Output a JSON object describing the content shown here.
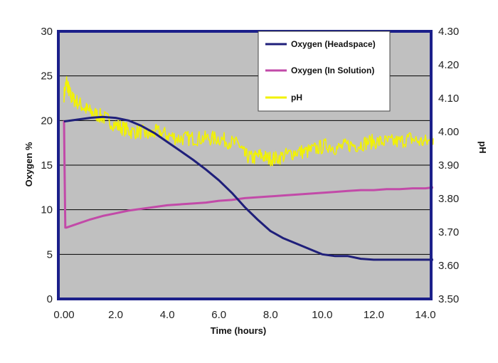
{
  "chart_data": {
    "type": "line",
    "xlabel": "Time (hours)",
    "ylabel": "Oxygen %",
    "y2label": "pH",
    "xlim": [
      0,
      14
    ],
    "ylim": [
      0,
      30
    ],
    "y2lim": [
      3.5,
      4.3
    ],
    "x_ticks": [
      "0.00",
      "2.0",
      "4.0",
      "6.0",
      "8.0",
      "10.0",
      "12.0",
      "14.0"
    ],
    "x_tick_values": [
      0,
      2,
      4,
      6,
      8,
      10,
      12,
      14
    ],
    "y_ticks": [
      "0",
      "5",
      "10",
      "15",
      "20",
      "25",
      "30"
    ],
    "y_tick_values": [
      0,
      5,
      10,
      15,
      20,
      25,
      30
    ],
    "y2_ticks": [
      "3.50",
      "3.60",
      "3.70",
      "3.80",
      "3.90",
      "4.00",
      "4.10",
      "4.20",
      "4.30"
    ],
    "y2_tick_values": [
      3.5,
      3.6,
      3.7,
      3.8,
      3.9,
      4.0,
      4.1,
      4.2,
      4.3
    ],
    "grid": "horizontal",
    "plot_background": "#c0c0c0",
    "frame_color": "#1b1f8a",
    "legend_position": "top-right",
    "series": [
      {
        "name": "Oxygen (Headspace)",
        "axis": "left",
        "color": "#1f1f7a",
        "x": [
          0,
          0.5,
          1.0,
          1.5,
          2.0,
          2.5,
          3.0,
          3.5,
          4.0,
          4.5,
          5.0,
          5.5,
          6.0,
          6.5,
          7.0,
          7.5,
          8.0,
          8.5,
          9.0,
          9.5,
          10.0,
          10.5,
          11.0,
          11.5,
          12.0,
          12.5,
          13.0,
          13.5,
          14.0,
          14.3
        ],
        "values": [
          19.9,
          20.1,
          20.3,
          20.4,
          20.3,
          20.0,
          19.4,
          18.6,
          17.6,
          16.6,
          15.6,
          14.5,
          13.3,
          11.9,
          10.3,
          8.9,
          7.6,
          6.8,
          6.2,
          5.6,
          5.0,
          4.8,
          4.8,
          4.5,
          4.4,
          4.4,
          4.4,
          4.4,
          4.4,
          4.4
        ]
      },
      {
        "name": "Oxygen (In Solution)",
        "axis": "left",
        "color": "#c24aa8",
        "x": [
          0,
          0.02,
          0.05,
          0.1,
          0.5,
          1.0,
          1.5,
          2.0,
          2.5,
          3.0,
          3.5,
          4.0,
          4.5,
          5.0,
          5.5,
          6.0,
          6.5,
          7.0,
          7.5,
          8.0,
          8.5,
          9.0,
          9.5,
          10.0,
          10.5,
          11.0,
          11.5,
          12.0,
          12.5,
          13.0,
          13.5,
          14.0,
          14.3
        ],
        "values": [
          20.0,
          15.0,
          8.0,
          8.0,
          8.4,
          8.9,
          9.3,
          9.6,
          9.9,
          10.1,
          10.3,
          10.5,
          10.6,
          10.7,
          10.8,
          11.0,
          11.1,
          11.3,
          11.4,
          11.5,
          11.6,
          11.7,
          11.8,
          11.9,
          12.0,
          12.1,
          12.2,
          12.2,
          12.3,
          12.3,
          12.4,
          12.4,
          12.5
        ]
      },
      {
        "name": "pH",
        "axis": "right",
        "color": "#f2f200",
        "x": [
          0,
          0.1,
          0.2,
          0.3,
          0.5,
          0.8,
          1.0,
          1.3,
          1.6,
          2.0,
          2.3,
          2.6,
          3.0,
          3.3,
          3.6,
          4.0,
          4.4,
          4.8,
          5.2,
          5.6,
          6.0,
          6.4,
          6.8,
          7.0,
          7.3,
          7.6,
          7.9,
          8.2,
          8.6,
          9.0,
          9.4,
          9.8,
          10.2,
          10.6,
          11.0,
          11.4,
          11.8,
          12.2,
          12.6,
          13.0,
          13.4,
          13.8,
          14.2,
          14.3
        ],
        "values": [
          4.11,
          4.15,
          4.12,
          4.1,
          4.09,
          4.07,
          4.06,
          4.05,
          4.04,
          4.02,
          4.01,
          4.0,
          4.0,
          3.99,
          4.0,
          3.99,
          3.98,
          3.98,
          3.98,
          3.98,
          3.98,
          3.97,
          3.96,
          3.93,
          3.92,
          3.93,
          3.92,
          3.92,
          3.93,
          3.94,
          3.94,
          3.95,
          3.96,
          3.95,
          3.96,
          3.96,
          3.97,
          3.97,
          3.97,
          3.97,
          3.98,
          3.97,
          3.97,
          3.98
        ]
      }
    ]
  }
}
